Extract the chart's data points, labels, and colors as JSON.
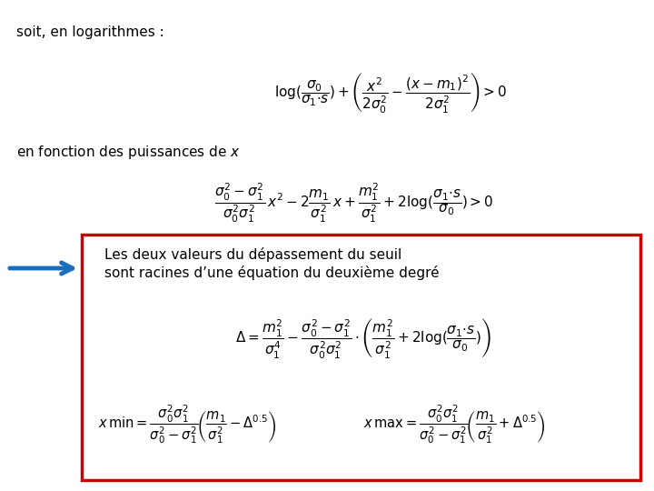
{
  "background_color": "#ffffff",
  "title_text": "soit, en logarithmes :",
  "box_text_line1": "Les deux valeurs du dépassement du seuil",
  "box_text_line2": "sont racines d’une équation du deuxième degré",
  "box_color": "#cc0000",
  "arrow_color": "#1a6dbd",
  "fig_width": 7.2,
  "fig_height": 5.4,
  "dpi": 100
}
